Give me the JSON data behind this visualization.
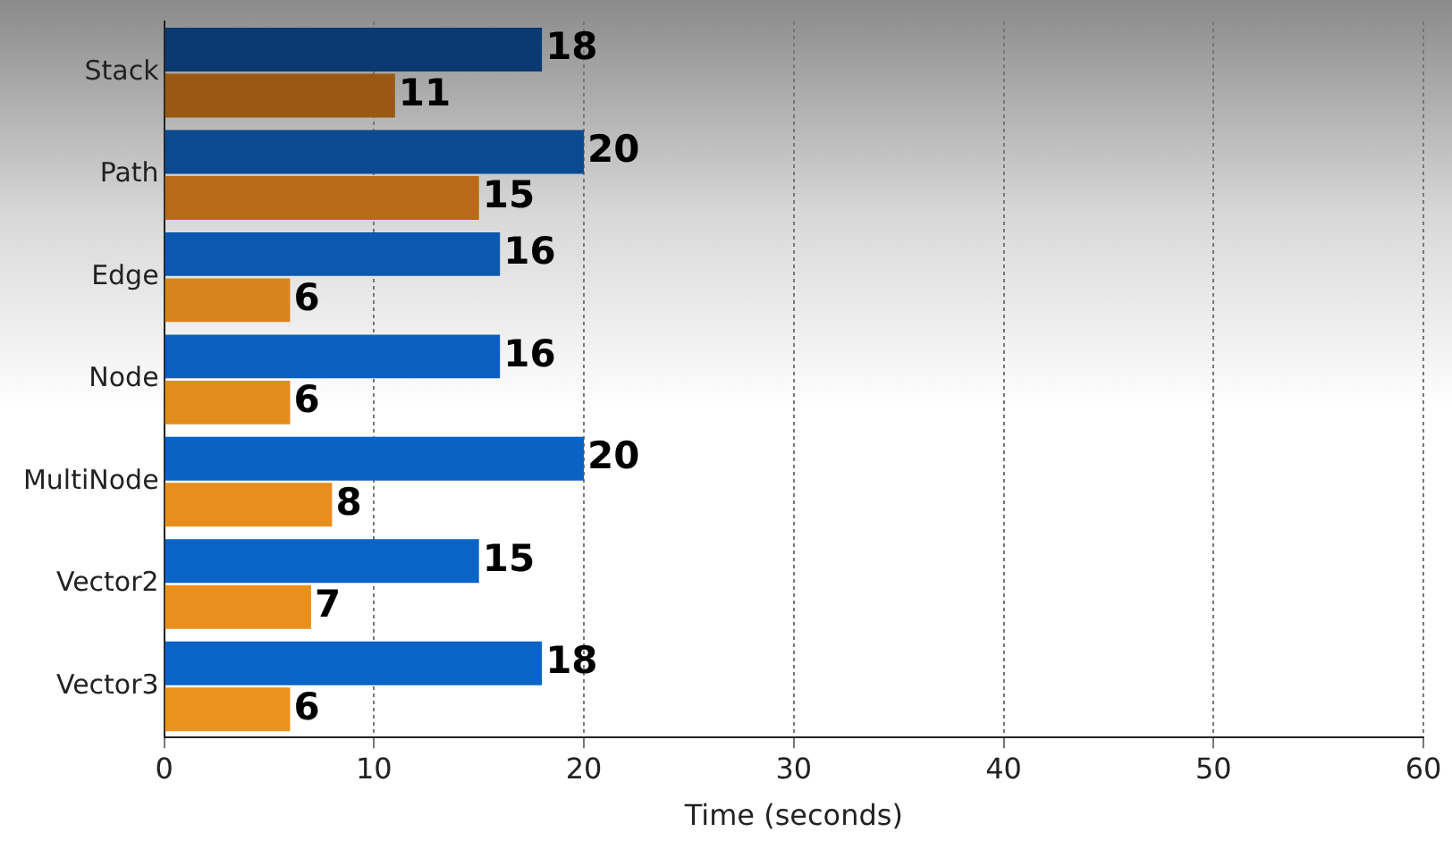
{
  "chart_data": {
    "type": "bar",
    "orientation": "horizontal",
    "xlabel": "Time (seconds)",
    "categories": [
      "Stack",
      "Path",
      "Edge",
      "Node",
      "MultiNode",
      "Vector2",
      "Vector3"
    ],
    "series": [
      {
        "colors": [
          "#0a3a70",
          "#0b4a90",
          "#0a58b0",
          "#0a5fbf",
          "#0a62c4",
          "#0a63c6",
          "#0a64c8"
        ],
        "values": [
          18,
          20,
          16,
          16,
          20,
          15,
          18
        ]
      },
      {
        "colors": [
          "#9a5812",
          "#b86a18",
          "#d8841e",
          "#e28c1e",
          "#e88e1e",
          "#ea901e",
          "#ec921f"
        ],
        "values": [
          11,
          15,
          6,
          6,
          8,
          7,
          6
        ]
      }
    ],
    "xlim": [
      0,
      60
    ],
    "xticks": [
      0,
      10,
      20,
      30,
      40,
      50,
      60
    ],
    "grid": "x",
    "data_labels": true,
    "legend": false
  }
}
